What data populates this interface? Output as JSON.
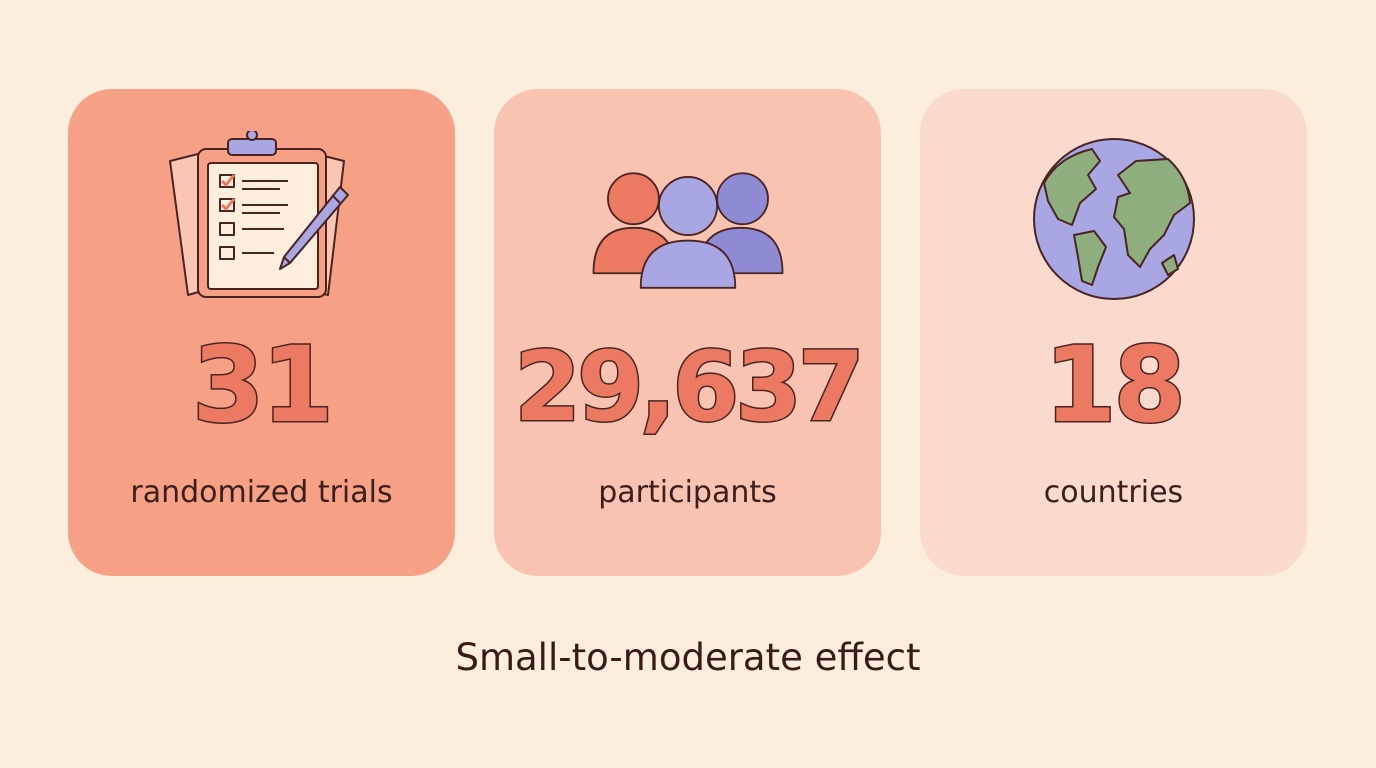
{
  "colors": {
    "background": "#fbeedd",
    "card_1": "#f6a185",
    "card_2": "#f8c3b1",
    "card_3": "#f9dacd",
    "number_fill": "#ec7a63",
    "accent_purple": "#a9a6e4",
    "globe_land": "#8fae7e"
  },
  "stats": [
    {
      "value": "31",
      "label": "randomized trials",
      "icon": "clipboard-checklist-icon"
    },
    {
      "value": "29,637",
      "label": "participants",
      "icon": "people-group-icon"
    },
    {
      "value": "18",
      "label": "countries",
      "icon": "globe-icon"
    }
  ],
  "footer": {
    "text": "Small-to-moderate effect"
  }
}
